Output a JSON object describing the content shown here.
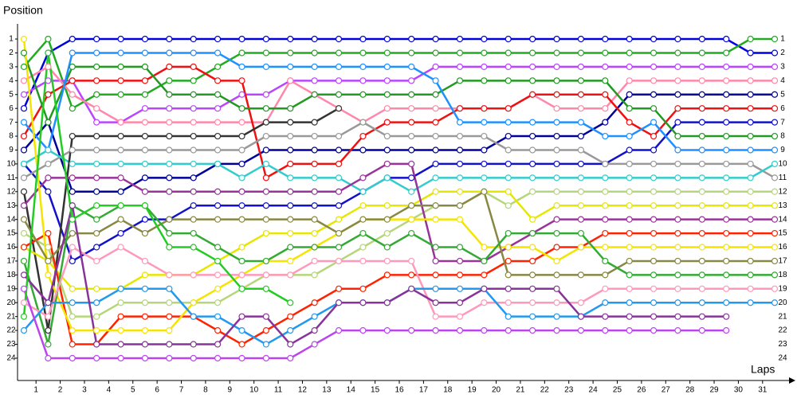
{
  "chart_data": {
    "type": "line",
    "y_label": "Position",
    "x_label": "Laps",
    "x": [
      0,
      1,
      2,
      3,
      4,
      5,
      6,
      7,
      8,
      9,
      10,
      11,
      12,
      13,
      14,
      15,
      16,
      17,
      18,
      19,
      20,
      21,
      22,
      23,
      24,
      25,
      26,
      27,
      28,
      29,
      30,
      31
    ],
    "xlim": [
      0,
      31
    ],
    "xticks": [
      {
        "value": 0.5,
        "label": "1"
      },
      {
        "value": 1.5,
        "label": "2"
      },
      {
        "value": 2.5,
        "label": "3"
      },
      {
        "value": 3.5,
        "label": "4"
      },
      {
        "value": 4.5,
        "label": "5"
      },
      {
        "value": 5.5,
        "label": "6"
      },
      {
        "value": 6.5,
        "label": "7"
      },
      {
        "value": 7.5,
        "label": "8"
      },
      {
        "value": 8.5,
        "label": "9"
      },
      {
        "value": 9.5,
        "label": "10"
      },
      {
        "value": 10.5,
        "label": "11"
      },
      {
        "value": 11.5,
        "label": "12"
      },
      {
        "value": 12.5,
        "label": "13"
      },
      {
        "value": 13.5,
        "label": "14"
      },
      {
        "value": 14.5,
        "label": "15"
      },
      {
        "value": 15.5,
        "label": "16"
      },
      {
        "value": 16.5,
        "label": "17"
      },
      {
        "value": 17.5,
        "label": "18"
      },
      {
        "value": 18.5,
        "label": "19"
      },
      {
        "value": 19.5,
        "label": "20"
      },
      {
        "value": 20.5,
        "label": "21"
      },
      {
        "value": 21.5,
        "label": "22"
      },
      {
        "value": 22.5,
        "label": "23"
      },
      {
        "value": 23.5,
        "label": "24"
      },
      {
        "value": 24.5,
        "label": "25"
      },
      {
        "value": 25.5,
        "label": "26"
      },
      {
        "value": 26.5,
        "label": "27"
      },
      {
        "value": 27.5,
        "label": "28"
      },
      {
        "value": 28.5,
        "label": "29"
      },
      {
        "value": 29.5,
        "label": "30"
      },
      {
        "value": 30.5,
        "label": "31"
      }
    ],
    "ylim": [
      0,
      25
    ],
    "y_reversed": true,
    "yticks": [
      1,
      2,
      3,
      4,
      5,
      6,
      7,
      8,
      9,
      10,
      11,
      12,
      13,
      14,
      15,
      16,
      17,
      18,
      19,
      20,
      21,
      22,
      23,
      24
    ],
    "series": [
      {
        "color": "#0000dd",
        "values": [
          6,
          2,
          1,
          1,
          1,
          1,
          1,
          1,
          1,
          1,
          1,
          1,
          1,
          1,
          1,
          1,
          1,
          1,
          1,
          1,
          1,
          1,
          1,
          1,
          1,
          1,
          1,
          1,
          1,
          1,
          2,
          2
        ]
      },
      {
        "color": "#22aa22",
        "values": [
          3,
          1,
          6,
          5,
          5,
          5,
          4,
          4,
          3,
          2,
          2,
          2,
          2,
          2,
          2,
          2,
          2,
          2,
          2,
          2,
          2,
          2,
          2,
          2,
          2,
          2,
          2,
          2,
          2,
          2,
          1,
          1
        ]
      },
      {
        "color": "#bb44ff",
        "values": [
          5,
          4,
          4,
          7,
          7,
          6,
          6,
          6,
          6,
          5,
          5,
          4,
          4,
          4,
          4,
          4,
          4,
          3,
          3,
          3,
          3,
          3,
          3,
          3,
          3,
          3,
          3,
          3,
          3,
          3,
          3,
          3
        ]
      },
      {
        "color": "#ff88aa",
        "values": [
          4,
          3,
          5,
          6,
          7,
          7,
          7,
          7,
          7,
          7,
          7,
          4,
          5,
          6,
          7,
          6,
          6,
          6,
          6,
          6,
          6,
          5,
          6,
          6,
          6,
          4,
          4,
          4,
          4,
          4,
          4,
          4
        ]
      },
      {
        "color": "#000099",
        "values": [
          9,
          7,
          12,
          12,
          12,
          11,
          11,
          11,
          10,
          10,
          9,
          9,
          9,
          9,
          9,
          9,
          9,
          9,
          9,
          9,
          8,
          8,
          8,
          8,
          7,
          5,
          5,
          5,
          5,
          5,
          5,
          5
        ]
      },
      {
        "color": "#ee1111",
        "values": [
          8,
          5,
          4,
          4,
          4,
          4,
          3,
          3,
          4,
          4,
          11,
          10,
          10,
          10,
          8,
          7,
          7,
          7,
          6,
          6,
          6,
          5,
          5,
          5,
          5,
          7,
          8,
          6,
          6,
          6,
          6,
          6
        ]
      },
      {
        "color": "#1111cc",
        "values": [
          10,
          12,
          17,
          16,
          15,
          14,
          14,
          13,
          13,
          13,
          13,
          13,
          13,
          13,
          12,
          11,
          11,
          10,
          10,
          10,
          10,
          10,
          10,
          10,
          10,
          9,
          9,
          7,
          7,
          7,
          7,
          7
        ]
      },
      {
        "color": "#229922",
        "values": [
          2,
          7,
          3,
          3,
          3,
          3,
          5,
          5,
          5,
          6,
          6,
          6,
          5,
          5,
          5,
          5,
          5,
          5,
          4,
          4,
          4,
          4,
          4,
          4,
          4,
          6,
          6,
          8,
          8,
          8,
          8,
          8
        ]
      },
      {
        "color": "#1e90ff",
        "values": [
          7,
          9,
          2,
          2,
          2,
          2,
          2,
          2,
          2,
          3,
          3,
          3,
          3,
          3,
          3,
          3,
          3,
          4,
          7,
          7,
          7,
          7,
          7,
          7,
          8,
          8,
          7,
          9,
          9,
          9,
          9,
          9
        ]
      },
      {
        "color": "#999999",
        "values": [
          11,
          10,
          9,
          9,
          9,
          9,
          9,
          9,
          9,
          9,
          8,
          8,
          8,
          8,
          7,
          8,
          8,
          8,
          8,
          8,
          9,
          9,
          9,
          9,
          10,
          10,
          10,
          10,
          10,
          10,
          10,
          11
        ]
      },
      {
        "color": "#33cccc",
        "values": [
          10,
          9,
          10,
          10,
          10,
          10,
          10,
          10,
          10,
          11,
          10,
          11,
          11,
          11,
          12,
          11,
          12,
          11,
          11,
          11,
          11,
          11,
          11,
          11,
          11,
          11,
          11,
          11,
          11,
          11,
          11,
          10
        ]
      },
      {
        "color": "#333333",
        "values": [
          12,
          22,
          8,
          8,
          8,
          8,
          8,
          8,
          8,
          8,
          7,
          7,
          7,
          6,
          null,
          null,
          null,
          null,
          null,
          null,
          null,
          null,
          null,
          null,
          null,
          null,
          null,
          null,
          null,
          null,
          null,
          null
        ]
      },
      {
        "color": "#b5d67a",
        "values": [
          15,
          16,
          21,
          21,
          20,
          20,
          20,
          20,
          20,
          19,
          18,
          18,
          18,
          17,
          16,
          15,
          14,
          13,
          13,
          12,
          13,
          12,
          12,
          12,
          12,
          12,
          12,
          12,
          12,
          12,
          12,
          12
        ]
      },
      {
        "color": "#e6e600",
        "values": [
          16,
          17,
          19,
          19,
          19,
          18,
          18,
          18,
          17,
          16,
          15,
          15,
          15,
          14,
          13,
          13,
          13,
          12,
          12,
          12,
          12,
          14,
          13,
          13,
          13,
          13,
          13,
          13,
          13,
          13,
          13,
          13
        ]
      },
      {
        "color": "#993399",
        "values": [
          13,
          11,
          11,
          11,
          11,
          12,
          12,
          12,
          12,
          12,
          12,
          12,
          12,
          12,
          11,
          10,
          10,
          17,
          17,
          17,
          16,
          15,
          14,
          14,
          14,
          14,
          14,
          14,
          14,
          14,
          14,
          14
        ]
      },
      {
        "color": "#ff2200",
        "values": [
          16,
          15,
          23,
          23,
          21,
          21,
          21,
          21,
          22,
          23,
          22,
          21,
          20,
          19,
          19,
          18,
          18,
          18,
          18,
          18,
          17,
          17,
          16,
          16,
          15,
          15,
          15,
          15,
          15,
          15,
          15,
          15
        ]
      },
      {
        "color": "#f5e400",
        "values": [
          1,
          18,
          22,
          22,
          22,
          22,
          22,
          20,
          19,
          18,
          17,
          17,
          16,
          15,
          14,
          14,
          14,
          14,
          14,
          16,
          16,
          16,
          17,
          16,
          16,
          16,
          16,
          16,
          16,
          16,
          16,
          16
        ]
      },
      {
        "color": "#888844",
        "values": [
          14,
          17,
          15,
          15,
          14,
          15,
          14,
          14,
          14,
          14,
          14,
          14,
          14,
          15,
          14,
          14,
          13,
          13,
          13,
          12,
          18,
          18,
          18,
          18,
          18,
          17,
          17,
          17,
          17,
          17,
          17,
          17
        ]
      },
      {
        "color": "#33aa33",
        "values": [
          17,
          23,
          13,
          14,
          13,
          13,
          15,
          15,
          16,
          17,
          17,
          16,
          16,
          16,
          15,
          16,
          15,
          16,
          16,
          17,
          15,
          15,
          15,
          15,
          17,
          18,
          18,
          18,
          18,
          18,
          18,
          18
        ]
      },
      {
        "color": "#ff99bb",
        "values": [
          20,
          21,
          16,
          17,
          16,
          17,
          18,
          18,
          18,
          18,
          18,
          18,
          17,
          17,
          17,
          17,
          17,
          21,
          21,
          20,
          20,
          20,
          20,
          20,
          19,
          19,
          19,
          19,
          19,
          19,
          19,
          19
        ]
      },
      {
        "color": "#2299ee",
        "values": [
          22,
          20,
          20,
          20,
          19,
          19,
          19,
          21,
          21,
          22,
          23,
          22,
          21,
          20,
          20,
          20,
          19,
          19,
          19,
          19,
          21,
          21,
          21,
          21,
          20,
          20,
          20,
          20,
          20,
          20,
          20,
          20
        ]
      },
      {
        "color": "#883399",
        "values": [
          18,
          20,
          13,
          23,
          23,
          23,
          23,
          23,
          23,
          21,
          21,
          23,
          22,
          20,
          20,
          20,
          19,
          20,
          20,
          19,
          19,
          19,
          19,
          21,
          21,
          21,
          21,
          21,
          21,
          21,
          null,
          null
        ]
      },
      {
        "color": "#bb44ee",
        "values": [
          19,
          24,
          24,
          24,
          24,
          24,
          24,
          24,
          24,
          24,
          24,
          24,
          23,
          22,
          22,
          22,
          22,
          22,
          22,
          22,
          22,
          22,
          22,
          22,
          22,
          22,
          22,
          22,
          22,
          22,
          null,
          null
        ]
      },
      {
        "color": "#22cc22",
        "values": [
          21,
          2,
          14,
          13,
          13,
          13,
          16,
          16,
          17,
          19,
          19,
          20,
          null,
          null,
          null,
          null,
          null,
          null,
          null,
          null,
          null,
          null,
          null,
          null,
          null,
          null,
          null,
          null,
          null,
          null,
          null,
          null
        ]
      }
    ]
  }
}
